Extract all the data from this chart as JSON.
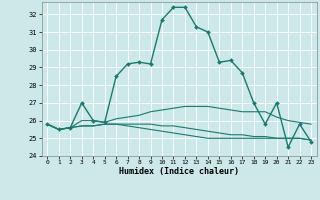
{
  "xlabel": "Humidex (Indice chaleur)",
  "xlim": [
    -0.5,
    23.5
  ],
  "ylim": [
    24,
    32.7
  ],
  "yticks": [
    24,
    25,
    26,
    27,
    28,
    29,
    30,
    31,
    32
  ],
  "xticks": [
    0,
    1,
    2,
    3,
    4,
    5,
    6,
    7,
    8,
    9,
    10,
    11,
    12,
    13,
    14,
    15,
    16,
    17,
    18,
    19,
    20,
    21,
    22,
    23
  ],
  "bg_color": "#cce8e8",
  "grid_color": "#ffffff",
  "line_color": "#1a7a6e",
  "series": [
    [
      25.8,
      25.5,
      25.6,
      27.0,
      26.0,
      25.9,
      28.5,
      29.2,
      29.3,
      29.2,
      31.7,
      32.4,
      32.4,
      31.3,
      31.0,
      29.3,
      29.4,
      28.7,
      27.0,
      25.8,
      27.0,
      24.5,
      25.8,
      24.8
    ],
    [
      25.8,
      25.5,
      25.6,
      26.0,
      26.0,
      25.9,
      26.1,
      26.2,
      26.3,
      26.5,
      26.6,
      26.7,
      26.8,
      26.8,
      26.8,
      26.7,
      26.6,
      26.5,
      26.5,
      26.5,
      26.2,
      26.0,
      25.9,
      25.8
    ],
    [
      25.8,
      25.5,
      25.6,
      25.7,
      25.7,
      25.8,
      25.8,
      25.8,
      25.8,
      25.8,
      25.7,
      25.7,
      25.6,
      25.5,
      25.4,
      25.3,
      25.2,
      25.2,
      25.1,
      25.1,
      25.0,
      25.0,
      25.0,
      24.9
    ],
    [
      25.8,
      25.5,
      25.6,
      25.7,
      25.7,
      25.8,
      25.8,
      25.7,
      25.6,
      25.5,
      25.4,
      25.3,
      25.2,
      25.1,
      25.0,
      25.0,
      25.0,
      25.0,
      25.0,
      25.0,
      25.0,
      25.0,
      25.0,
      24.9
    ]
  ]
}
